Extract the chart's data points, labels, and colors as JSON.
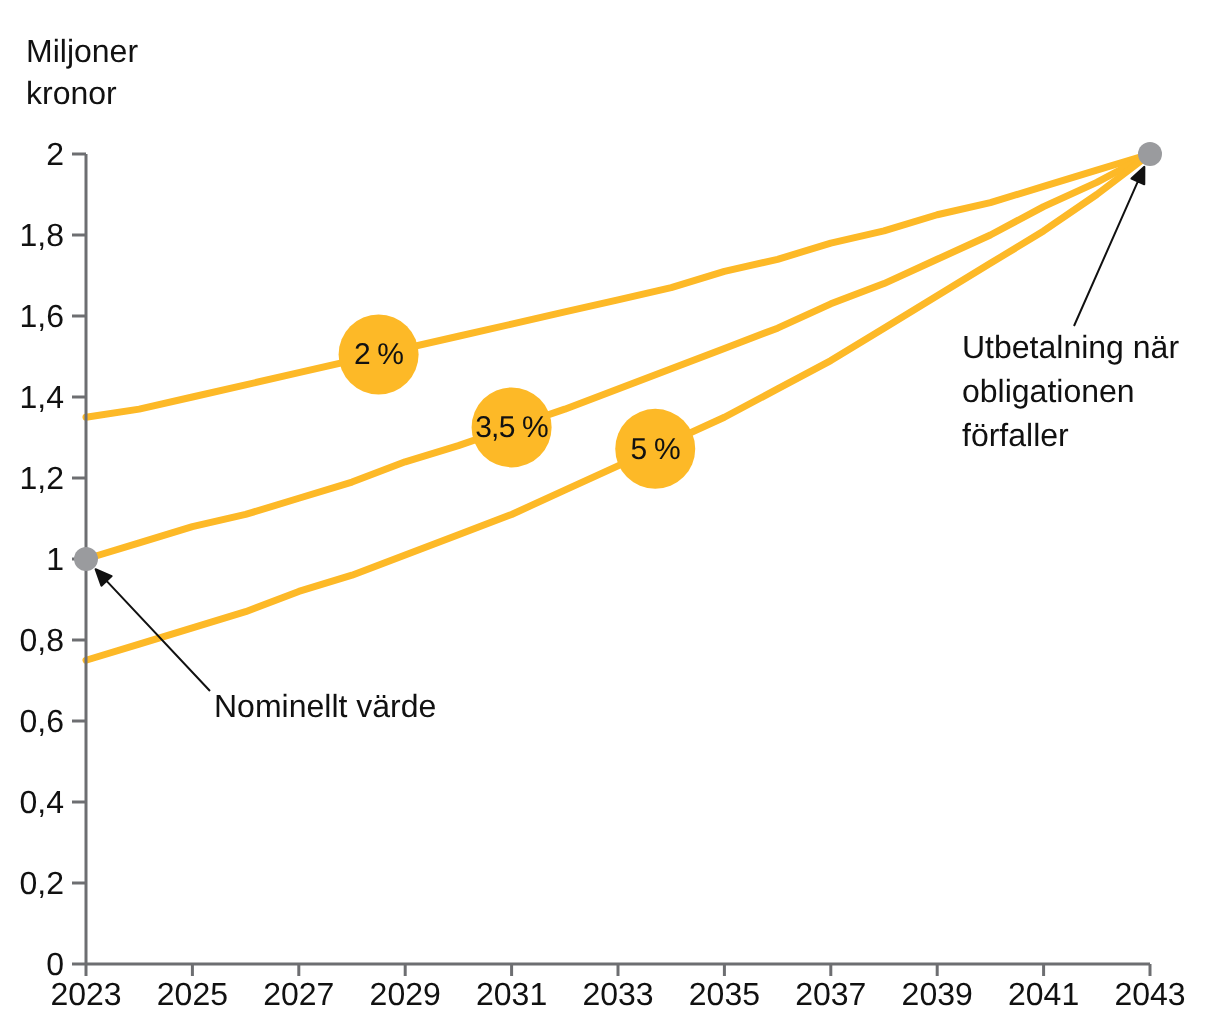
{
  "chart_data": {
    "type": "line",
    "ylabel": "Miljoner kronor",
    "x": [
      2023,
      2024,
      2025,
      2026,
      2027,
      2028,
      2029,
      2030,
      2031,
      2032,
      2033,
      2034,
      2035,
      2036,
      2037,
      2038,
      2039,
      2040,
      2041,
      2042,
      2043
    ],
    "xlim": [
      2023,
      2043
    ],
    "xticks": [
      2023,
      2025,
      2027,
      2029,
      2031,
      2033,
      2035,
      2037,
      2039,
      2041,
      2043
    ],
    "ylim": [
      0,
      2
    ],
    "yticks": [
      0,
      {
        "value": 0.2,
        "label": "0,2"
      },
      {
        "value": 0.4,
        "label": "0,4"
      },
      {
        "value": 0.6,
        "label": "0,6"
      },
      {
        "value": 0.8,
        "label": "0,8"
      },
      1,
      {
        "value": 1.2,
        "label": "1,2"
      },
      {
        "value": 1.4,
        "label": "1,4"
      },
      {
        "value": 1.6,
        "label": "1,6"
      },
      {
        "value": 1.8,
        "label": "1,8"
      },
      2
    ],
    "series": [
      {
        "name": "2 %",
        "color": "#fdb927",
        "values": [
          1.35,
          1.37,
          1.4,
          1.43,
          1.46,
          null,
          null,
          1.55,
          1.58,
          1.61,
          1.64,
          1.67,
          1.71,
          1.74,
          1.78,
          1.81,
          1.85,
          1.88,
          1.92,
          1.96,
          2.0
        ]
      },
      {
        "name": "3,5 %",
        "color": "#fdb927",
        "values": [
          1.0,
          1.04,
          1.08,
          1.11,
          1.15,
          1.19,
          1.24,
          1.28,
          null,
          1.37,
          1.42,
          1.47,
          1.52,
          1.57,
          1.63,
          1.68,
          1.74,
          1.8,
          1.87,
          1.93,
          2.0
        ]
      },
      {
        "name": "5 %",
        "color": "#fdb927",
        "values": [
          0.75,
          0.79,
          0.83,
          0.87,
          0.92,
          0.96,
          1.01,
          1.06,
          1.11,
          1.17,
          1.23,
          null,
          1.35,
          1.42,
          1.49,
          1.57,
          1.65,
          1.73,
          1.81,
          1.9,
          2.0
        ]
      },
      {
        "type": "scatter",
        "color": "#9a9b9e",
        "marker": "circle",
        "x": [
          2023,
          2043
        ],
        "values": [
          1,
          2
        ]
      }
    ],
    "annotations": [
      "Nominellt värde",
      "Utbetalning när obligationen förfaller"
    ]
  }
}
